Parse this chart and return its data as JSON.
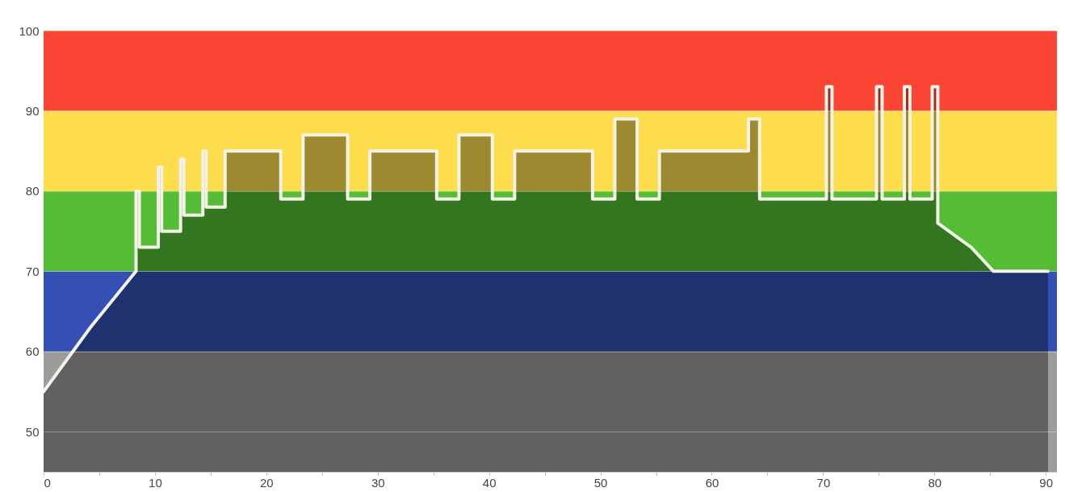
{
  "chart_data": {
    "type": "area",
    "x": [
      0,
      4.2,
      8.3,
      8.3,
      8.6,
      8.6,
      10.3,
      10.3,
      10.6,
      10.6,
      12.3,
      12.3,
      12.6,
      12.6,
      14.3,
      14.3,
      14.6,
      14.6,
      16.3,
      16.3,
      21.3,
      21.3,
      23.3,
      23.3,
      27.3,
      27.3,
      29.3,
      29.3,
      35.3,
      35.3,
      37.3,
      37.3,
      40.3,
      40.3,
      42.3,
      42.3,
      49.3,
      49.3,
      51.3,
      51.3,
      53.3,
      53.3,
      55.3,
      55.3,
      63.3,
      63.3,
      64.3,
      64.3,
      70.3,
      70.3,
      70.8,
      70.8,
      74.8,
      74.8,
      75.3,
      75.3,
      77.3,
      77.3,
      77.8,
      77.8,
      79.8,
      79.8,
      80.3,
      80.3,
      83.3,
      85.3,
      90.2
    ],
    "series": [
      {
        "color": "#f2f2e6",
        "values": [
          55,
          63,
          70,
          80,
          80,
          73,
          73,
          83,
          83,
          75,
          75,
          84,
          84,
          77,
          77,
          85,
          85,
          78,
          78,
          85,
          85,
          79,
          79,
          87,
          87,
          79,
          79,
          85,
          85,
          79,
          79,
          87,
          87,
          79,
          79,
          85,
          85,
          79,
          79,
          89,
          89,
          79,
          79,
          85,
          85,
          89,
          89,
          79,
          79,
          93,
          93,
          79,
          79,
          93,
          93,
          79,
          79,
          93,
          93,
          79,
          79,
          93,
          93,
          76,
          73,
          70,
          70
        ]
      }
    ],
    "xlim": [
      0,
      91
    ],
    "xticks": [
      0,
      {
        "value": 5,
        "label": null
      },
      10,
      {
        "value": 15,
        "label": null
      },
      20,
      {
        "value": 25,
        "label": null
      },
      30,
      {
        "value": 35,
        "label": null
      },
      40,
      {
        "value": 45,
        "label": null
      },
      50,
      {
        "value": 55,
        "label": null
      },
      60,
      {
        "value": 65,
        "label": null
      },
      70,
      {
        "value": 75,
        "label": null
      },
      80,
      {
        "value": 85,
        "label": null
      },
      90
    ],
    "ylim": [
      45,
      100
    ],
    "yticks": [
      50,
      60,
      70,
      80,
      90,
      100
    ],
    "bands": [
      {
        "axis": "y",
        "from": 45,
        "to": 60,
        "color": "#9c9c9c"
      },
      {
        "axis": "y",
        "from": 60,
        "to": 70,
        "color": "#3550b4"
      },
      {
        "axis": "y",
        "from": 70,
        "to": 80,
        "color": "#55bd35"
      },
      {
        "axis": "y",
        "from": 80,
        "to": 90,
        "color": "#fedd4c"
      },
      {
        "axis": "y",
        "from": 90,
        "to": 100,
        "color": "#fb4535"
      }
    ],
    "grid": "y",
    "line_style": "solid"
  }
}
